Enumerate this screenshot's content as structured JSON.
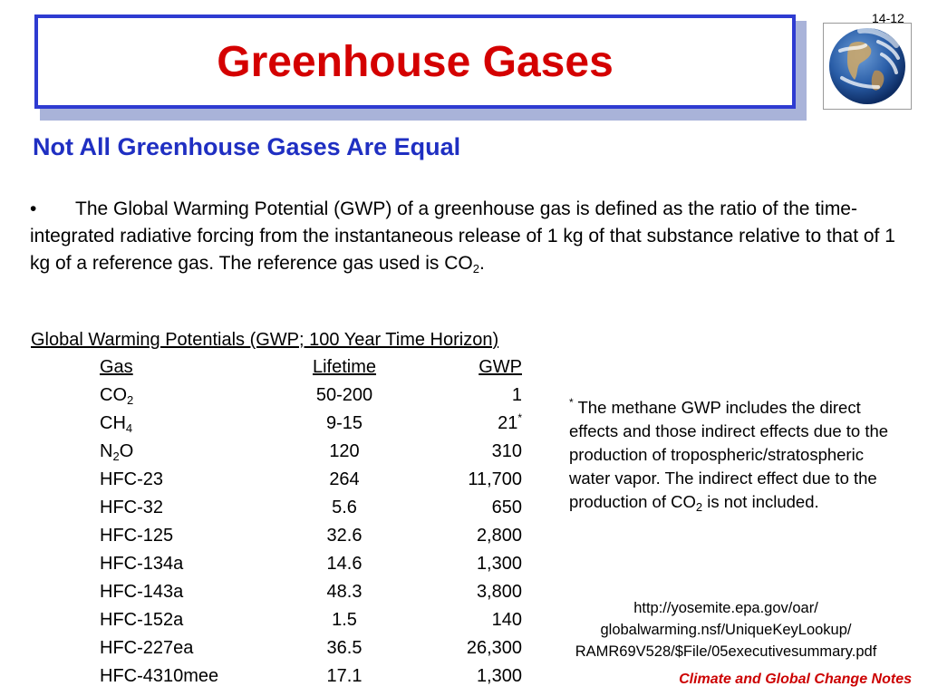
{
  "slide": {
    "number": "14-12",
    "title": "Greenhouse Gases",
    "subtitle": "Not All Greenhouse Gases Are Equal",
    "bullet": {
      "symbol": "•",
      "text_part1": "The Global Warming Potential (GWP) of a greenhouse gas is defined as the ratio of the time-integrated radiative forcing from the instantaneous release of 1 kg of that substance relative to that of 1 kg of a reference gas. The reference gas used is CO",
      "text_sub": "2",
      "text_end": "."
    },
    "table": {
      "title": "Global Warming Potentials (GWP; 100 Year Time Horizon)",
      "headers": {
        "gas": "Gas",
        "lifetime": "Lifetime",
        "gwp": "GWP"
      },
      "rows": [
        {
          "gas": "CO",
          "gas_sub": "2",
          "gas_tail": "",
          "lifetime": "50-200",
          "gwp": "1",
          "gwp_sup": ""
        },
        {
          "gas": "CH",
          "gas_sub": "4",
          "gas_tail": "",
          "lifetime": "9-15",
          "gwp": "21",
          "gwp_sup": "*"
        },
        {
          "gas": "N",
          "gas_sub": "2",
          "gas_tail": "O",
          "lifetime": "120",
          "gwp": "310",
          "gwp_sup": ""
        },
        {
          "gas": "HFC-23",
          "gas_sub": "",
          "gas_tail": "",
          "lifetime": "264",
          "gwp": "11,700",
          "gwp_sup": ""
        },
        {
          "gas": "HFC-32",
          "gas_sub": "",
          "gas_tail": "",
          "lifetime": "5.6",
          "gwp": "650",
          "gwp_sup": ""
        },
        {
          "gas": "HFC-125",
          "gas_sub": "",
          "gas_tail": "",
          "lifetime": "32.6",
          "gwp": "2,800",
          "gwp_sup": ""
        },
        {
          "gas": "HFC-134a",
          "gas_sub": "",
          "gas_tail": "",
          "lifetime": "14.6",
          "gwp": "1,300",
          "gwp_sup": ""
        },
        {
          "gas": "HFC-143a",
          "gas_sub": "",
          "gas_tail": "",
          "lifetime": "48.3",
          "gwp": "3,800",
          "gwp_sup": ""
        },
        {
          "gas": "HFC-152a",
          "gas_sub": "",
          "gas_tail": "",
          "lifetime": "1.5",
          "gwp": "140",
          "gwp_sup": ""
        },
        {
          "gas": "HFC-227ea",
          "gas_sub": "",
          "gas_tail": "",
          "lifetime": "36.5",
          "gwp": "26,300",
          "gwp_sup": ""
        },
        {
          "gas": "HFC-4310mee",
          "gas_sub": "",
          "gas_tail": "",
          "lifetime": "17.1",
          "gwp": "1,300",
          "gwp_sup": ""
        }
      ]
    },
    "footnote": {
      "marker": "*",
      "text_part1": " The methane GWP includes the direct effects and those indirect effects due to the production of tropospheric/stratospheric water vapor. The indirect effect due to the production of CO",
      "text_sub": "2",
      "text_end": " is not included."
    },
    "source_url": {
      "line1": "http://yosemite.epa.gov/oar/",
      "line2": "globalwarming.nsf/UniqueKeyLookup/",
      "line3": "RAMR69V528/$File/05executivesummary.pdf"
    },
    "footer": "Climate and Global Change Notes",
    "colors": {
      "title": "#d40000",
      "subtitle": "#1f2fc2",
      "frame": "#2e3bd1",
      "footer": "#cc0000"
    },
    "icons": {
      "globe": "earth-globe-icon"
    }
  }
}
